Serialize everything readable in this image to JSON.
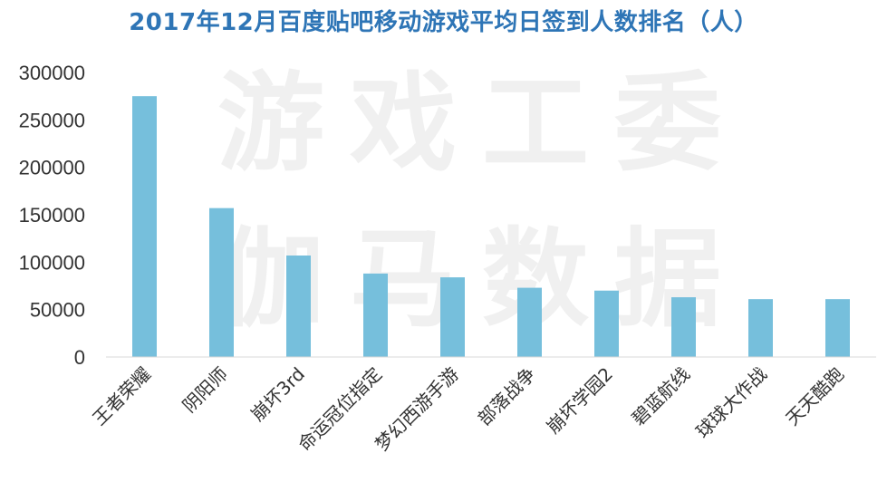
{
  "chart_data": {
    "type": "bar",
    "title": "2017年12月百度贴吧移动游戏平均日签到人数排名（人）",
    "watermark": [
      "游戏工委",
      "伽马数据"
    ],
    "categories": [
      "王者荣耀",
      "阴阳师",
      "崩坏3rd",
      "命运冠位指定",
      "梦幻西游手游",
      "部落战争",
      "崩坏学园2",
      "碧蓝航线",
      "球球大作战",
      "天天酷跑"
    ],
    "values": [
      275000,
      157000,
      107000,
      88000,
      84000,
      73000,
      70000,
      63000,
      61000,
      61000
    ],
    "yticks": [
      "0",
      "50000",
      "100000",
      "150000",
      "200000",
      "250000",
      "300000"
    ],
    "ylim": [
      0,
      300000
    ],
    "grid": false,
    "legend": "none",
    "bar_color": "#76bfdc",
    "xlabel": "",
    "ylabel": ""
  }
}
